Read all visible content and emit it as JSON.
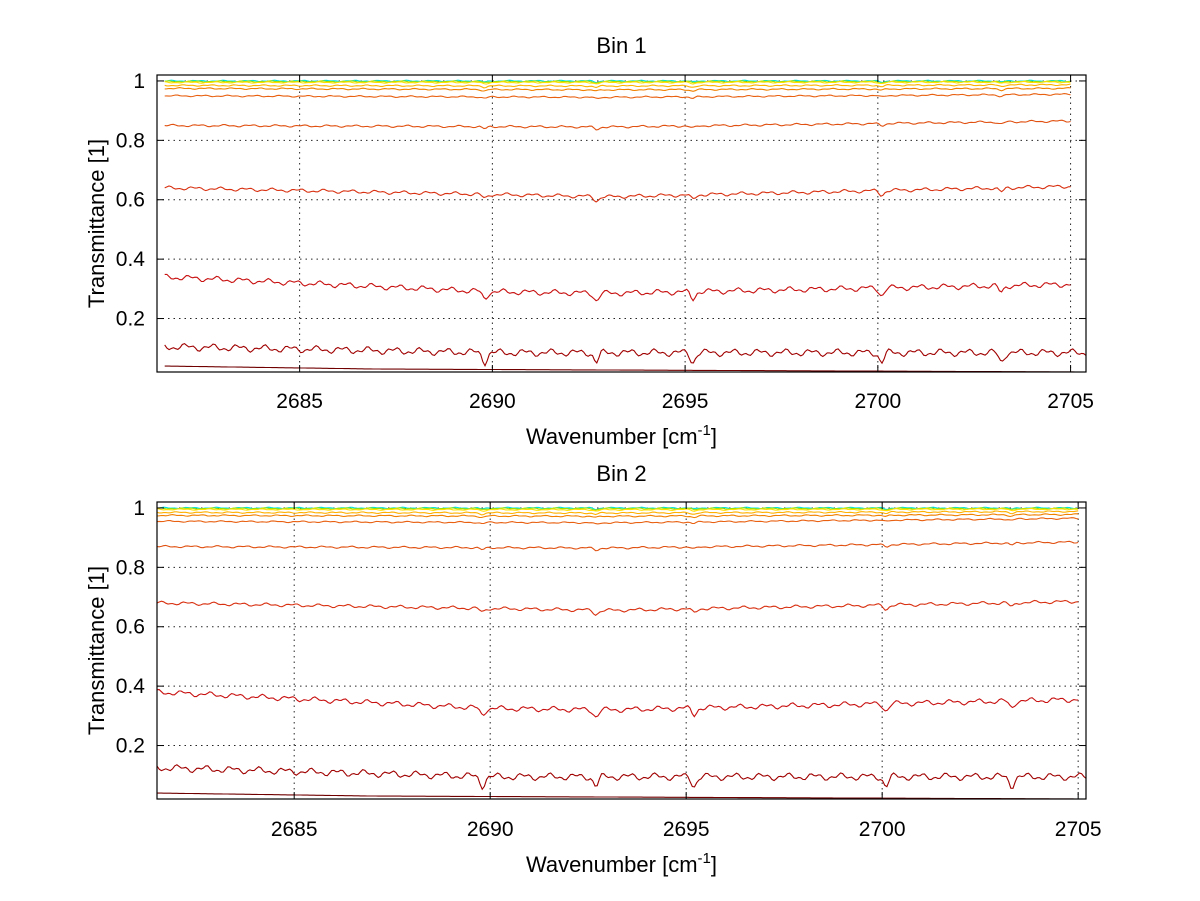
{
  "chart_data": [
    {
      "type": "line",
      "title": "Bin 1",
      "xlabel": "Wavenumber [cm",
      "xlabel_sup": "-1",
      "xlabel_suffix": "]",
      "ylabel": "Transmittance [1]",
      "xlim": [
        2681.3,
        2705.4
      ],
      "ylim": [
        0.02,
        1.02
      ],
      "xticks": [
        2685,
        2690,
        2695,
        2700,
        2705
      ],
      "yticks": [
        0.2,
        0.4,
        0.6,
        0.8,
        1
      ],
      "xtick_labels": [
        "2685",
        "2690",
        "2695",
        "2700",
        "2705"
      ],
      "ytick_labels": [
        "0.2",
        "0.4",
        "0.6",
        "0.8",
        "1"
      ],
      "grid": true,
      "dip_positions": [
        2689.8,
        2692.7,
        2695.2,
        2700.1,
        2703.2
      ],
      "series": [
        {
          "color": "#00e0e0",
          "x": [
            2681.5,
            2693,
            2705
          ],
          "values": [
            1.0,
            1.0,
            1.0
          ]
        },
        {
          "color": "#a0e000",
          "x": [
            2681.5,
            2693,
            2705
          ],
          "values": [
            0.998,
            0.998,
            0.998
          ]
        },
        {
          "color": "#ffe000",
          "x": [
            2681.5,
            2693,
            2705
          ],
          "values": [
            0.995,
            0.995,
            0.996
          ]
        },
        {
          "color": "#ffb000",
          "x": [
            2681.5,
            2693,
            2705
          ],
          "values": [
            0.985,
            0.983,
            0.987
          ]
        },
        {
          "color": "#f08000",
          "x": [
            2681.5,
            2693,
            2705
          ],
          "values": [
            0.975,
            0.97,
            0.975
          ]
        },
        {
          "color": "#e86010",
          "x": [
            2681.5,
            2693,
            2705
          ],
          "values": [
            0.95,
            0.945,
            0.955
          ]
        },
        {
          "color": "#e05010",
          "x": [
            2681.5,
            2693,
            2705
          ],
          "values": [
            0.85,
            0.845,
            0.865
          ]
        },
        {
          "color": "#d83010",
          "x": [
            2681.5,
            2693,
            2705
          ],
          "values": [
            0.64,
            0.61,
            0.645
          ]
        },
        {
          "color": "#c81010",
          "x": [
            2681.5,
            2690,
            2693,
            2705
          ],
          "values": [
            0.34,
            0.29,
            0.285,
            0.315
          ]
        },
        {
          "color": "#a00000",
          "x": [
            2681.5,
            2690,
            2705.4
          ],
          "values": [
            0.105,
            0.085,
            0.085
          ]
        },
        {
          "color": "#700000",
          "x": [
            2681.5,
            2687,
            2705.4
          ],
          "values": [
            0.04,
            0.03,
            0.02
          ]
        }
      ]
    },
    {
      "type": "line",
      "title": "Bin 2",
      "xlabel": "Wavenumber [cm",
      "xlabel_sup": "-1",
      "xlabel_suffix": "]",
      "ylabel": "Transmittance [1]",
      "xlim": [
        2681.5,
        2705.2
      ],
      "ylim": [
        0.02,
        1.02
      ],
      "xticks": [
        2685,
        2690,
        2695,
        2700,
        2705
      ],
      "yticks": [
        0.2,
        0.4,
        0.6,
        0.8,
        1
      ],
      "xtick_labels": [
        "2685",
        "2690",
        "2695",
        "2700",
        "2705"
      ],
      "ytick_labels": [
        "0.2",
        "0.4",
        "0.6",
        "0.8",
        "1"
      ],
      "grid": true,
      "dip_positions": [
        2689.8,
        2692.7,
        2695.2,
        2700.1,
        2703.3
      ],
      "series": [
        {
          "color": "#00e0e0",
          "x": [
            2681.5,
            2693,
            2705
          ],
          "values": [
            1.0,
            1.0,
            1.0
          ]
        },
        {
          "color": "#a0e000",
          "x": [
            2681.5,
            2693,
            2705
          ],
          "values": [
            0.998,
            0.998,
            0.998
          ]
        },
        {
          "color": "#ffe000",
          "x": [
            2681.5,
            2693,
            2705
          ],
          "values": [
            0.995,
            0.994,
            0.996
          ]
        },
        {
          "color": "#ffb000",
          "x": [
            2681.5,
            2693,
            2705
          ],
          "values": [
            0.985,
            0.983,
            0.988
          ]
        },
        {
          "color": "#f08000",
          "x": [
            2681.5,
            2693,
            2705
          ],
          "values": [
            0.975,
            0.972,
            0.978
          ]
        },
        {
          "color": "#e86010",
          "x": [
            2681.5,
            2693,
            2705
          ],
          "values": [
            0.955,
            0.95,
            0.965
          ]
        },
        {
          "color": "#e05010",
          "x": [
            2681.5,
            2693,
            2705
          ],
          "values": [
            0.87,
            0.865,
            0.885
          ]
        },
        {
          "color": "#d83010",
          "x": [
            2681.5,
            2693,
            2705
          ],
          "values": [
            0.68,
            0.655,
            0.685
          ]
        },
        {
          "color": "#c81010",
          "x": [
            2681.5,
            2690,
            2693,
            2705
          ],
          "values": [
            0.38,
            0.325,
            0.32,
            0.355
          ]
        },
        {
          "color": "#a00000",
          "x": [
            2681.5,
            2690,
            2705.2
          ],
          "values": [
            0.125,
            0.095,
            0.095
          ]
        },
        {
          "color": "#700000",
          "x": [
            2681.5,
            2687,
            2705.2
          ],
          "values": [
            0.04,
            0.03,
            0.02
          ]
        }
      ]
    }
  ]
}
